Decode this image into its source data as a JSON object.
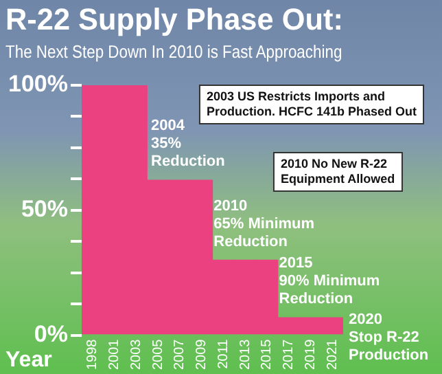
{
  "chart_data": {
    "type": "bar",
    "title": "R-22 Supply Phase Out:",
    "subtitle": "The Next Step Down In 2010 is Fast Approaching",
    "xlabel": "Year",
    "categories": [
      "1998",
      "2001",
      "2003",
      "2005",
      "2007",
      "2009",
      "2011",
      "2013",
      "2015",
      "2017",
      "2019",
      "2021"
    ],
    "values": [
      100,
      100,
      100,
      62,
      62,
      62,
      30,
      30,
      30,
      7,
      7,
      7
    ],
    "color": "#ec4181",
    "ylim": [
      0,
      100
    ],
    "yticks": [
      {
        "value": 0,
        "label": "0%"
      },
      {
        "value": 12.5,
        "label": null
      },
      {
        "value": 25,
        "label": null
      },
      {
        "value": 37.5,
        "label": null
      },
      {
        "value": 50,
        "label": "50%"
      },
      {
        "value": 62.5,
        "label": null
      },
      {
        "value": 75,
        "label": null
      },
      {
        "value": 87.5,
        "label": null
      },
      {
        "value": 100,
        "label": "100%"
      }
    ],
    "grid": false,
    "legend": false,
    "annotations": [
      "2003 US Restricts Imports and\nProduction. HCFC 141b Phased Out",
      {
        "text": "2004\n35%\nReduction",
        "x": "2005",
        "y": 62
      },
      "2010 No New R-22\nEquipment Allowed",
      {
        "text": "2010\n65% Minimum\nReduction",
        "x": "2011",
        "y": 30
      },
      {
        "text": "2015\n90% Minimum\nReduction",
        "x": "2017",
        "y": 7
      },
      {
        "text": "2020\nStop R-22\nProduction",
        "x": "2021",
        "y": 7
      }
    ]
  }
}
